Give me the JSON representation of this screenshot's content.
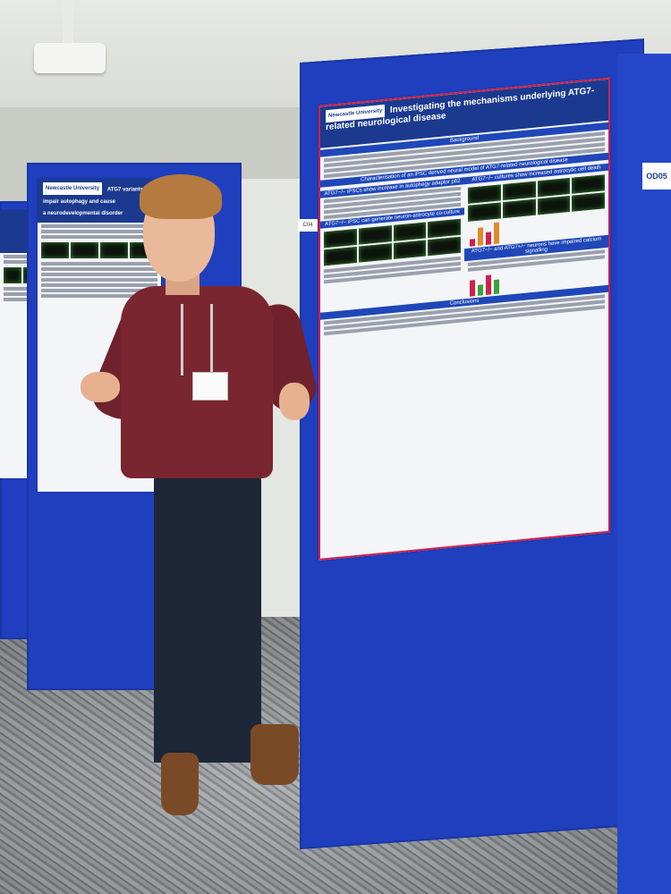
{
  "scene": {
    "main_poster": {
      "title": "Investigating the mechanisms underlying ATG7-related neurological disease",
      "institution_logo": "Newcastle University",
      "sections": [
        "Background",
        "Characterisation of an iPSC derived neural model of ATG7-related neurological disease",
        "ATG7−/− iPSCs show increase in autophagy adaptor p62",
        "ATG7−/− cultures show increased astrocytic cell death",
        "ATG7−/− iPSC can generate neuron-astrocyte co-culture",
        "ATG7−/− and ATG7+/− neurons have impaired calcium signalling",
        "Conclusions"
      ]
    },
    "left_poster": {
      "title_line1": "ATG7 variants impair autophagy and cause",
      "title_line2": "a neurodevelopmental disorder",
      "logo": "Newcastle University"
    },
    "board_tags": {
      "number": "OD05",
      "small": "C04"
    },
    "colors": {
      "board_blue": "#1f3fbf",
      "poster_header": "#1b3a8f",
      "accent_red": "#d0204a",
      "sweater": "#7a2630"
    }
  }
}
